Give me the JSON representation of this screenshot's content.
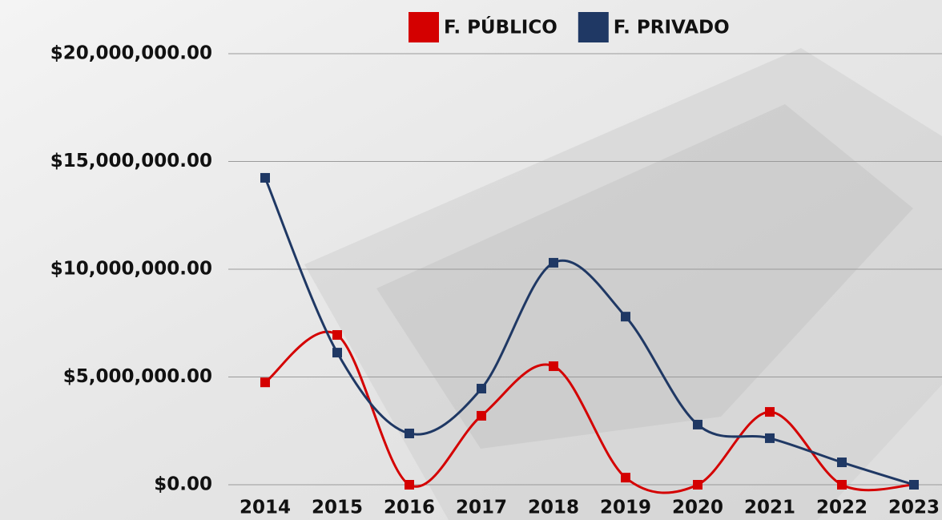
{
  "chart_data": {
    "type": "line",
    "categories": [
      "2014",
      "2015",
      "2016",
      "2017",
      "2018",
      "2019",
      "2020",
      "2021",
      "2022",
      "2023"
    ],
    "series": [
      {
        "name": "F. PÚBLICO",
        "color": "#d40000",
        "values": [
          4750000,
          6950000,
          0,
          3200000,
          5500000,
          330000,
          0,
          3380000,
          0,
          0
        ]
      },
      {
        "name": "F. PRIVADO",
        "color": "#1f3864",
        "values": [
          14240000,
          6130000,
          2380000,
          4460000,
          10300000,
          7800000,
          2790000,
          2160000,
          1040000,
          0
        ]
      }
    ],
    "ylim": [
      0,
      20000000
    ],
    "yticks": [
      {
        "value": 0,
        "label": "$0.00"
      },
      {
        "value": 5000000,
        "label": "$5,000,000.00"
      },
      {
        "value": 10000000,
        "label": "$10,000,000.00"
      },
      {
        "value": 15000000,
        "label": "$15,000,000.00"
      },
      {
        "value": 20000000,
        "label": "$20,000,000.00"
      }
    ],
    "grid": true,
    "legend": "top",
    "smooth": true
  }
}
